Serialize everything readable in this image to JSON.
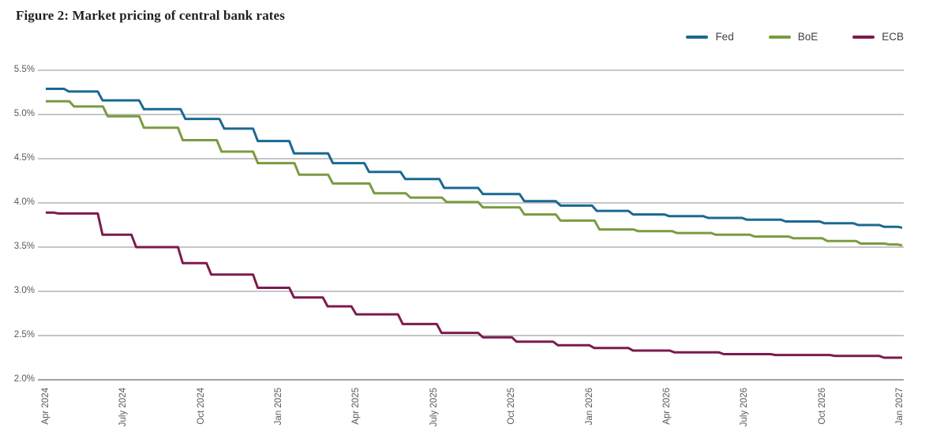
{
  "title": "Figure 2: Market pricing of central bank rates",
  "colors": {
    "fed": "#1a6990",
    "boe": "#7a9b40",
    "ecb": "#7b1b4f",
    "grid": "#b0b3b5",
    "axis": "#939598",
    "tick_text": "#58595b",
    "title_text": "#231f20",
    "legend_text": "#414042"
  },
  "chart_data": {
    "type": "line",
    "subtype": "step",
    "title": "Figure 2: Market pricing of central bank rates",
    "xlabel": "",
    "ylabel": "",
    "x_unit": "months since Apr 2024",
    "x_range": [
      0,
      33
    ],
    "ylim": [
      2.0,
      5.5
    ],
    "grid": "horizontal",
    "legend_position": "top-right",
    "y_ticks": [
      5.5,
      5.0,
      4.5,
      4.0,
      3.5,
      3.0,
      2.5,
      2.0
    ],
    "y_tick_labels": [
      "5.5%",
      "5.0%",
      "4.5%",
      "4.0%",
      "3.5%",
      "3.0%",
      "2.5%",
      "2.0%"
    ],
    "x_tick_months": [
      0,
      3,
      6,
      9,
      12,
      15,
      18,
      21,
      24,
      27,
      30,
      33
    ],
    "x_tick_labels": [
      "Apr 2024",
      "July 2024",
      "Oct 2024",
      "Jan 2025",
      "Apr 2025",
      "July 2025",
      "Oct 2025",
      "Jan 2026",
      "Apr 2026",
      "July 2026",
      "Oct 2026",
      "Jan 2027"
    ],
    "series": [
      {
        "name": "Fed",
        "color": "#1a6990",
        "points": [
          [
            0,
            5.29
          ],
          [
            0.8,
            5.26
          ],
          [
            2.1,
            5.16
          ],
          [
            3.7,
            5.06
          ],
          [
            5.3,
            4.95
          ],
          [
            6.8,
            4.84
          ],
          [
            8.1,
            4.7
          ],
          [
            9.5,
            4.56
          ],
          [
            11.0,
            4.45
          ],
          [
            12.4,
            4.35
          ],
          [
            13.8,
            4.27
          ],
          [
            15.3,
            4.17
          ],
          [
            16.8,
            4.1
          ],
          [
            18.4,
            4.02
          ],
          [
            19.8,
            3.97
          ],
          [
            21.2,
            3.91
          ],
          [
            22.6,
            3.87
          ],
          [
            24.0,
            3.85
          ],
          [
            25.5,
            3.83
          ],
          [
            27.0,
            3.81
          ],
          [
            28.5,
            3.79
          ],
          [
            30.0,
            3.77
          ],
          [
            31.3,
            3.75
          ],
          [
            32.3,
            3.73
          ],
          [
            33,
            3.72
          ]
        ]
      },
      {
        "name": "BoE",
        "color": "#7a9b40",
        "points": [
          [
            0,
            5.15
          ],
          [
            1.0,
            5.09
          ],
          [
            2.3,
            4.98
          ],
          [
            3.7,
            4.85
          ],
          [
            5.2,
            4.71
          ],
          [
            6.7,
            4.58
          ],
          [
            8.1,
            4.45
          ],
          [
            9.7,
            4.32
          ],
          [
            11.0,
            4.22
          ],
          [
            12.6,
            4.11
          ],
          [
            14.0,
            4.06
          ],
          [
            15.4,
            4.01
          ],
          [
            16.8,
            3.95
          ],
          [
            18.4,
            3.87
          ],
          [
            19.8,
            3.8
          ],
          [
            21.3,
            3.7
          ],
          [
            22.8,
            3.68
          ],
          [
            24.3,
            3.66
          ],
          [
            25.8,
            3.64
          ],
          [
            27.3,
            3.62
          ],
          [
            28.8,
            3.6
          ],
          [
            30.1,
            3.57
          ],
          [
            31.4,
            3.54
          ],
          [
            32.5,
            3.53
          ],
          [
            33,
            3.52
          ]
        ]
      },
      {
        "name": "ECB",
        "color": "#7b1b4f",
        "points": [
          [
            0,
            3.89
          ],
          [
            0.4,
            3.88
          ],
          [
            2.1,
            3.64
          ],
          [
            3.4,
            3.5
          ],
          [
            5.2,
            3.32
          ],
          [
            6.3,
            3.19
          ],
          [
            8.1,
            3.04
          ],
          [
            9.5,
            2.93
          ],
          [
            10.8,
            2.83
          ],
          [
            11.9,
            2.74
          ],
          [
            13.7,
            2.63
          ],
          [
            15.2,
            2.53
          ],
          [
            16.8,
            2.48
          ],
          [
            18.1,
            2.43
          ],
          [
            19.7,
            2.39
          ],
          [
            21.1,
            2.36
          ],
          [
            22.6,
            2.33
          ],
          [
            24.2,
            2.31
          ],
          [
            26.1,
            2.29
          ],
          [
            28.1,
            2.28
          ],
          [
            30.4,
            2.27
          ],
          [
            32.3,
            2.25
          ],
          [
            33,
            2.25
          ]
        ]
      }
    ]
  }
}
